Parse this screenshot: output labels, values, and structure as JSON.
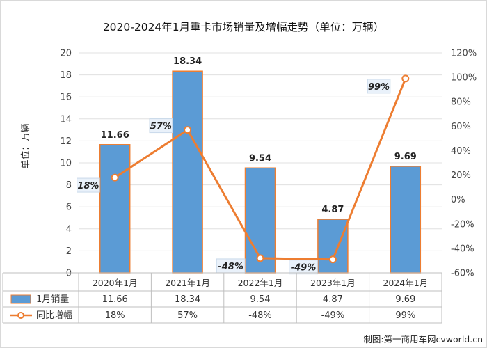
{
  "chart_data": {
    "type": "bar+line",
    "title": "2020-2024年1月重卡市场销量及增幅走势（单位：万辆）",
    "ylabel": "单位：万辆",
    "categories": [
      "2020年1月",
      "2021年1月",
      "2022年1月",
      "2023年1月",
      "2024年1月"
    ],
    "series": [
      {
        "name": "1月销量",
        "type": "bar",
        "axis": "left",
        "values": [
          11.66,
          18.34,
          9.54,
          4.87,
          9.69
        ],
        "labels": [
          "11.66",
          "18.34",
          "9.54",
          "4.87",
          "9.69"
        ],
        "color": "#5b9bd5",
        "edge_color": "#ed7d31"
      },
      {
        "name": "同比增幅",
        "type": "line",
        "axis": "right",
        "values": [
          18,
          57,
          -48,
          -49,
          99
        ],
        "labels": [
          "18%",
          "57%",
          "-48%",
          "-49%",
          "99%"
        ],
        "color": "#ed7d31"
      }
    ],
    "ylim": [
      0,
      20
    ],
    "yticks": [
      0,
      2,
      4,
      6,
      8,
      10,
      12,
      14,
      16,
      18,
      20
    ],
    "y2lim": [
      -60,
      120
    ],
    "y2ticks": [
      "-60%",
      "-40%",
      "-20%",
      "0%",
      "20%",
      "40%",
      "60%",
      "80%",
      "100%",
      "120%"
    ],
    "grid": true,
    "legend": "data-table-left"
  },
  "credit": "制图:第一商用车网cvworld.cn"
}
